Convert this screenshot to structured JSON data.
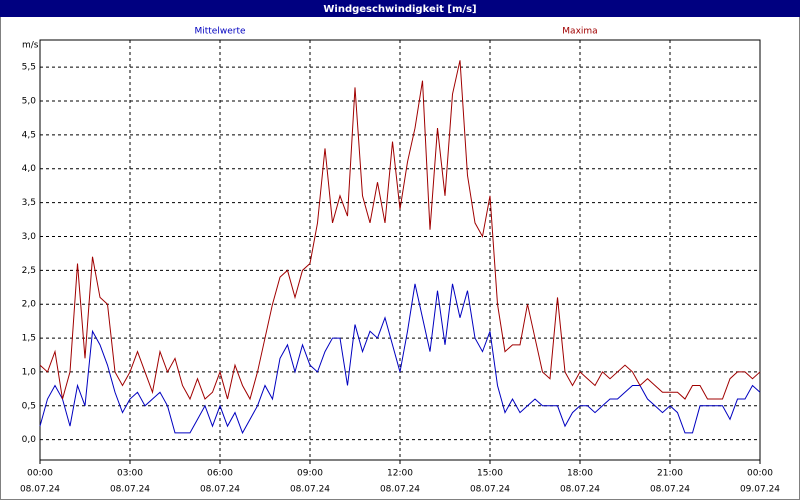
{
  "chart_data": {
    "type": "line",
    "title": "Windgeschwindigkeit [m/s]",
    "y_unit": "m/s",
    "xlim": [
      0,
      24
    ],
    "ylim": [
      -0.3,
      5.9
    ],
    "xticks": [
      {
        "value": 0,
        "label": "00:00"
      },
      {
        "value": 3,
        "label": "03:00"
      },
      {
        "value": 6,
        "label": "06:00"
      },
      {
        "value": 9,
        "label": "09:00"
      },
      {
        "value": 12,
        "label": "12:00"
      },
      {
        "value": 15,
        "label": "15:00"
      },
      {
        "value": 18,
        "label": "18:00"
      },
      {
        "value": 21,
        "label": "21:00"
      },
      {
        "value": 24,
        "label": "00:00"
      }
    ],
    "xtick_dates": [
      "08.07.24",
      "08.07.24",
      "08.07.24",
      "08.07.24",
      "08.07.24",
      "08.07.24",
      "08.07.24",
      "08.07.24",
      "09.07.24"
    ],
    "yticks": [
      {
        "value": 0,
        "label": "0,0"
      },
      {
        "value": 0.5,
        "label": "0,5"
      },
      {
        "value": 1,
        "label": "1,0"
      },
      {
        "value": 1.5,
        "label": "1,5"
      },
      {
        "value": 2,
        "label": "2,0"
      },
      {
        "value": 2.5,
        "label": "2,5"
      },
      {
        "value": 3,
        "label": "3,0"
      },
      {
        "value": 3.5,
        "label": "3,5"
      },
      {
        "value": 4,
        "label": "4,0"
      },
      {
        "value": 4.5,
        "label": "4,5"
      },
      {
        "value": 5,
        "label": "5,0"
      },
      {
        "value": 5.5,
        "label": "5,5"
      }
    ],
    "grid": true,
    "x": [
      0,
      0.25,
      0.5,
      0.75,
      1,
      1.25,
      1.5,
      1.75,
      2,
      2.25,
      2.5,
      2.75,
      3,
      3.25,
      3.5,
      3.75,
      4,
      4.25,
      4.5,
      4.75,
      5,
      5.25,
      5.5,
      5.75,
      6,
      6.25,
      6.5,
      6.75,
      7,
      7.25,
      7.5,
      7.75,
      8,
      8.25,
      8.5,
      8.75,
      9,
      9.25,
      9.5,
      9.75,
      10,
      10.25,
      10.5,
      10.75,
      11,
      11.25,
      11.5,
      11.75,
      12,
      12.25,
      12.5,
      12.75,
      13,
      13.25,
      13.5,
      13.75,
      14,
      14.25,
      14.5,
      14.75,
      15,
      15.25,
      15.5,
      15.75,
      16,
      16.25,
      16.5,
      16.75,
      17,
      17.25,
      17.5,
      17.75,
      18,
      18.25,
      18.5,
      18.75,
      19,
      19.25,
      19.5,
      19.75,
      20,
      20.25,
      20.5,
      20.75,
      21,
      21.25,
      21.5,
      21.75,
      22,
      22.25,
      22.5,
      22.75,
      23,
      23.25,
      23.5,
      23.75,
      24
    ],
    "series": [
      {
        "name": "Mittelwerte",
        "color": "#0000c0",
        "values": [
          0.2,
          0.6,
          0.8,
          0.6,
          0.2,
          0.8,
          0.5,
          1.6,
          1.4,
          1.1,
          0.7,
          0.4,
          0.6,
          0.7,
          0.5,
          0.6,
          0.7,
          0.5,
          0.1,
          0.1,
          0.1,
          0.3,
          0.5,
          0.2,
          0.5,
          0.2,
          0.4,
          0.1,
          0.3,
          0.5,
          0.8,
          0.6,
          1.2,
          1.4,
          1.0,
          1.4,
          1.1,
          1.0,
          1.3,
          1.5,
          1.5,
          0.8,
          1.7,
          1.3,
          1.6,
          1.5,
          1.8,
          1.4,
          1.0,
          1.6,
          2.3,
          1.8,
          1.3,
          2.2,
          1.4,
          2.3,
          1.8,
          2.2,
          1.5,
          1.3,
          1.6,
          0.8,
          0.4,
          0.6,
          0.4,
          0.5,
          0.6,
          0.5,
          0.5,
          0.5,
          0.2,
          0.4,
          0.5,
          0.5,
          0.4,
          0.5,
          0.6,
          0.6,
          0.7,
          0.8,
          0.8,
          0.6,
          0.5,
          0.4,
          0.5,
          0.4,
          0.1,
          0.1,
          0.5,
          0.5,
          0.5,
          0.5,
          0.3,
          0.6,
          0.6,
          0.8,
          0.7
        ]
      },
      {
        "name": "Maxima",
        "color": "#a00000",
        "values": [
          1.1,
          1.0,
          1.3,
          0.6,
          1.0,
          2.6,
          1.2,
          2.7,
          2.1,
          2.0,
          1.0,
          0.8,
          1.0,
          1.3,
          1.0,
          0.7,
          1.3,
          1.0,
          1.2,
          0.8,
          0.6,
          0.9,
          0.6,
          0.7,
          1.0,
          0.6,
          1.1,
          0.8,
          0.6,
          1.0,
          1.5,
          2.0,
          2.4,
          2.5,
          2.1,
          2.5,
          2.6,
          3.2,
          4.3,
          3.2,
          3.6,
          3.3,
          5.2,
          3.6,
          3.2,
          3.8,
          3.2,
          4.4,
          3.4,
          4.1,
          4.6,
          5.3,
          3.1,
          4.6,
          3.6,
          5.1,
          5.6,
          3.9,
          3.2,
          3.0,
          3.6,
          2.0,
          1.3,
          1.4,
          1.4,
          2.0,
          1.5,
          1.0,
          0.9,
          2.1,
          1.0,
          0.8,
          1.0,
          0.9,
          0.8,
          1.0,
          0.9,
          1.0,
          1.1,
          1.0,
          0.8,
          0.9,
          0.8,
          0.7,
          0.7,
          0.7,
          0.6,
          0.8,
          0.8,
          0.6,
          0.6,
          0.6,
          0.9,
          1.0,
          1.0,
          0.9,
          1.0
        ]
      }
    ]
  }
}
